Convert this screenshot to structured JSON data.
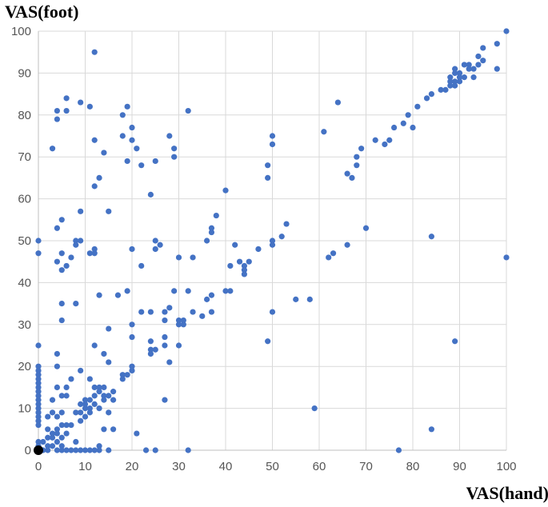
{
  "chart_data": {
    "type": "scatter",
    "title": "",
    "xlabel": "VAS(hand)",
    "ylabel": "VAS(foot)",
    "xlim": [
      0,
      100
    ],
    "ylim": [
      0,
      100
    ],
    "xticks": [
      0,
      10,
      20,
      30,
      40,
      50,
      60,
      70,
      80,
      90,
      100
    ],
    "yticks": [
      0,
      10,
      20,
      30,
      40,
      50,
      60,
      70,
      80,
      90,
      100
    ],
    "grid": true,
    "legend": "none",
    "marker_color": "#4472C4",
    "highlight_point": {
      "x": 0,
      "y": 0,
      "color": "#000000"
    },
    "points": [
      [
        0,
        50
      ],
      [
        0,
        47
      ],
      [
        0,
        25
      ],
      [
        0,
        20
      ],
      [
        0,
        19
      ],
      [
        0,
        18
      ],
      [
        0,
        17
      ],
      [
        0,
        16
      ],
      [
        0,
        15
      ],
      [
        0,
        14
      ],
      [
        0,
        13
      ],
      [
        0,
        12
      ],
      [
        0,
        11
      ],
      [
        0,
        10
      ],
      [
        0,
        9
      ],
      [
        0,
        8
      ],
      [
        0,
        7
      ],
      [
        0,
        6
      ],
      [
        0,
        2
      ],
      [
        0,
        1
      ],
      [
        1,
        2
      ],
      [
        1,
        0
      ],
      [
        2,
        3
      ],
      [
        2,
        5
      ],
      [
        2,
        8
      ],
      [
        2,
        0
      ],
      [
        2,
        1
      ],
      [
        3,
        1
      ],
      [
        3,
        3
      ],
      [
        3,
        4
      ],
      [
        3,
        9
      ],
      [
        3,
        12
      ],
      [
        3,
        72
      ],
      [
        4,
        2
      ],
      [
        4,
        4
      ],
      [
        4,
        5
      ],
      [
        4,
        8
      ],
      [
        4,
        15
      ],
      [
        4,
        20
      ],
      [
        4,
        23
      ],
      [
        4,
        45
      ],
      [
        4,
        53
      ],
      [
        4,
        79
      ],
      [
        4,
        81
      ],
      [
        4,
        0
      ],
      [
        5,
        1
      ],
      [
        5,
        3
      ],
      [
        5,
        6
      ],
      [
        5,
        9
      ],
      [
        5,
        13
      ],
      [
        5,
        31
      ],
      [
        5,
        35
      ],
      [
        5,
        43
      ],
      [
        5,
        47
      ],
      [
        5,
        55
      ],
      [
        5,
        0
      ],
      [
        6,
        4
      ],
      [
        6,
        6
      ],
      [
        6,
        13
      ],
      [
        6,
        15
      ],
      [
        6,
        44
      ],
      [
        6,
        81
      ],
      [
        6,
        84
      ],
      [
        6,
        0
      ],
      [
        7,
        6
      ],
      [
        7,
        17
      ],
      [
        7,
        46
      ],
      [
        7,
        0
      ],
      [
        8,
        2
      ],
      [
        8,
        9
      ],
      [
        8,
        35
      ],
      [
        8,
        49
      ],
      [
        8,
        50
      ],
      [
        8,
        0
      ],
      [
        9,
        7
      ],
      [
        9,
        9
      ],
      [
        9,
        11
      ],
      [
        9,
        19
      ],
      [
        9,
        50
      ],
      [
        9,
        57
      ],
      [
        9,
        83
      ],
      [
        9,
        0
      ],
      [
        10,
        8
      ],
      [
        10,
        10
      ],
      [
        10,
        11
      ],
      [
        10,
        12
      ],
      [
        10,
        0
      ],
      [
        11,
        9
      ],
      [
        11,
        10
      ],
      [
        11,
        12
      ],
      [
        11,
        17
      ],
      [
        11,
        47
      ],
      [
        11,
        82
      ],
      [
        11,
        0
      ],
      [
        12,
        11
      ],
      [
        12,
        13
      ],
      [
        12,
        15
      ],
      [
        12,
        25
      ],
      [
        12,
        47
      ],
      [
        12,
        48
      ],
      [
        12,
        63
      ],
      [
        12,
        74
      ],
      [
        12,
        95
      ],
      [
        12,
        0
      ],
      [
        13,
        1
      ],
      [
        13,
        10
      ],
      [
        13,
        14
      ],
      [
        13,
        15
      ],
      [
        13,
        37
      ],
      [
        13,
        65
      ],
      [
        13,
        0
      ],
      [
        14,
        12
      ],
      [
        14,
        13
      ],
      [
        14,
        15
      ],
      [
        14,
        23
      ],
      [
        14,
        71
      ],
      [
        14,
        5
      ],
      [
        15,
        9
      ],
      [
        15,
        13
      ],
      [
        15,
        21
      ],
      [
        15,
        29
      ],
      [
        15,
        57
      ],
      [
        15,
        0
      ],
      [
        16,
        12
      ],
      [
        16,
        14
      ],
      [
        16,
        5
      ],
      [
        17,
        37
      ],
      [
        18,
        17
      ],
      [
        18,
        18
      ],
      [
        18,
        75
      ],
      [
        18,
        80
      ],
      [
        19,
        18
      ],
      [
        19,
        38
      ],
      [
        19,
        69
      ],
      [
        19,
        82
      ],
      [
        20,
        19
      ],
      [
        20,
        20
      ],
      [
        20,
        27
      ],
      [
        20,
        30
      ],
      [
        20,
        48
      ],
      [
        20,
        74
      ],
      [
        20,
        77
      ],
      [
        21,
        4
      ],
      [
        21,
        72
      ],
      [
        22,
        33
      ],
      [
        22,
        44
      ],
      [
        22,
        68
      ],
      [
        23,
        0
      ],
      [
        24,
        23
      ],
      [
        24,
        24
      ],
      [
        24,
        26
      ],
      [
        24,
        33
      ],
      [
        24,
        61
      ],
      [
        25,
        24
      ],
      [
        25,
        48
      ],
      [
        25,
        50
      ],
      [
        25,
        69
      ],
      [
        25,
        0
      ],
      [
        26,
        49
      ],
      [
        27,
        12
      ],
      [
        27,
        25
      ],
      [
        27,
        27
      ],
      [
        27,
        31
      ],
      [
        27,
        33
      ],
      [
        28,
        21
      ],
      [
        28,
        34
      ],
      [
        28,
        75
      ],
      [
        29,
        38
      ],
      [
        29,
        70
      ],
      [
        29,
        72
      ],
      [
        30,
        25
      ],
      [
        30,
        30
      ],
      [
        30,
        31
      ],
      [
        30,
        46
      ],
      [
        31,
        30
      ],
      [
        31,
        31
      ],
      [
        32,
        38
      ],
      [
        32,
        81
      ],
      [
        32,
        0
      ],
      [
        33,
        33
      ],
      [
        33,
        46
      ],
      [
        35,
        32
      ],
      [
        36,
        36
      ],
      [
        36,
        50
      ],
      [
        37,
        33
      ],
      [
        37,
        37
      ],
      [
        37,
        52
      ],
      [
        37,
        53
      ],
      [
        38,
        56
      ],
      [
        40,
        38
      ],
      [
        40,
        62
      ],
      [
        41,
        38
      ],
      [
        41,
        44
      ],
      [
        42,
        49
      ],
      [
        43,
        45
      ],
      [
        44,
        42
      ],
      [
        44,
        43
      ],
      [
        44,
        44
      ],
      [
        45,
        45
      ],
      [
        47,
        48
      ],
      [
        49,
        26
      ],
      [
        49,
        65
      ],
      [
        49,
        68
      ],
      [
        50,
        33
      ],
      [
        50,
        49
      ],
      [
        50,
        50
      ],
      [
        50,
        73
      ],
      [
        50,
        75
      ],
      [
        52,
        51
      ],
      [
        53,
        54
      ],
      [
        55,
        36
      ],
      [
        58,
        36
      ],
      [
        59,
        10
      ],
      [
        61,
        76
      ],
      [
        62,
        46
      ],
      [
        63,
        47
      ],
      [
        64,
        83
      ],
      [
        66,
        49
      ],
      [
        66,
        66
      ],
      [
        67,
        65
      ],
      [
        68,
        68
      ],
      [
        68,
        70
      ],
      [
        69,
        72
      ],
      [
        70,
        53
      ],
      [
        72,
        74
      ],
      [
        74,
        73
      ],
      [
        75,
        74
      ],
      [
        76,
        77
      ],
      [
        77,
        0
      ],
      [
        78,
        78
      ],
      [
        79,
        80
      ],
      [
        80,
        77
      ],
      [
        81,
        82
      ],
      [
        83,
        84
      ],
      [
        84,
        51
      ],
      [
        84,
        85
      ],
      [
        84,
        5
      ],
      [
        86,
        86
      ],
      [
        87,
        86
      ],
      [
        88,
        87
      ],
      [
        88,
        88
      ],
      [
        88,
        89
      ],
      [
        89,
        26
      ],
      [
        89,
        87
      ],
      [
        89,
        88
      ],
      [
        89,
        90
      ],
      [
        89,
        91
      ],
      [
        90,
        88
      ],
      [
        90,
        89
      ],
      [
        90,
        90
      ],
      [
        91,
        89
      ],
      [
        91,
        92
      ],
      [
        92,
        91
      ],
      [
        92,
        92
      ],
      [
        93,
        89
      ],
      [
        93,
        91
      ],
      [
        94,
        92
      ],
      [
        94,
        94
      ],
      [
        95,
        93
      ],
      [
        95,
        96
      ],
      [
        98,
        97
      ],
      [
        98,
        91
      ],
      [
        100,
        100
      ],
      [
        100,
        46
      ]
    ]
  }
}
